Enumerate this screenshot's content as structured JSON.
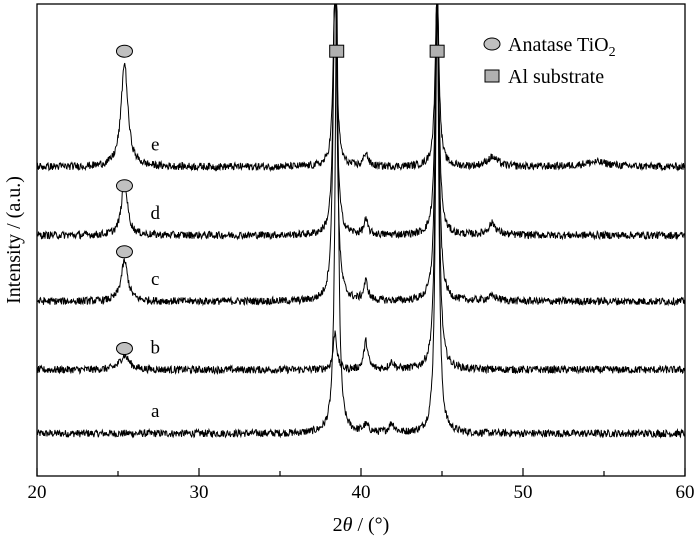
{
  "chart_data": {
    "type": "line",
    "title": "",
    "xlabel_prefix": "2",
    "xlabel_symbol": "θ",
    "xlabel_suffix": " / (°)",
    "ylabel": "Intensity / (a.u.)",
    "xlim": [
      20,
      60
    ],
    "x_ticks": [
      "20",
      "30",
      "40",
      "50",
      "60"
    ],
    "y_ticks": false,
    "grid": false,
    "legend": {
      "placement": "top-right",
      "entries": [
        {
          "marker": "ellipse",
          "name_main": "Anatase TiO",
          "name_sub": "2",
          "color": "#c0c0c0"
        },
        {
          "marker": "square",
          "name_main": "Al substrate",
          "name_sub": "",
          "color": "#b0b0b0"
        }
      ]
    },
    "series": [
      {
        "name": "a",
        "label_x": 27.3,
        "baseline": 0.09,
        "peaks": [
          [
            38.5,
            0.12,
            0.93
          ],
          [
            44.7,
            0.12,
            0.93
          ],
          [
            40.3,
            0.2,
            0.015
          ],
          [
            41.9,
            0.2,
            0.02
          ]
        ]
      },
      {
        "name": "b",
        "label_x": 27.3,
        "baseline": 0.225,
        "peaks": [
          [
            25.4,
            0.35,
            0.03
          ],
          [
            38.4,
            0.13,
            0.08
          ],
          [
            40.3,
            0.15,
            0.06
          ],
          [
            41.9,
            0.2,
            0.015
          ],
          [
            44.7,
            0.13,
            0.8
          ]
        ]
      },
      {
        "name": "c",
        "label_x": 27.3,
        "baseline": 0.37,
        "peaks": [
          [
            25.4,
            0.25,
            0.085
          ],
          [
            38.4,
            0.13,
            0.75
          ],
          [
            40.3,
            0.15,
            0.04
          ],
          [
            44.7,
            0.13,
            0.7
          ],
          [
            48.1,
            0.4,
            0.01
          ]
        ]
      },
      {
        "name": "d",
        "label_x": 27.3,
        "baseline": 0.51,
        "peaks": [
          [
            25.4,
            0.22,
            0.115
          ],
          [
            38.4,
            0.13,
            0.55
          ],
          [
            40.3,
            0.15,
            0.03
          ],
          [
            44.7,
            0.13,
            0.55
          ],
          [
            48.1,
            0.3,
            0.025
          ]
        ]
      },
      {
        "name": "e",
        "label_x": 27.3,
        "baseline": 0.655,
        "peaks": [
          [
            25.4,
            0.25,
            0.22
          ],
          [
            38.4,
            0.13,
            0.4
          ],
          [
            40.3,
            0.15,
            0.03
          ],
          [
            44.7,
            0.13,
            0.4
          ],
          [
            48.1,
            0.4,
            0.02
          ],
          [
            54.5,
            1.0,
            0.01
          ]
        ]
      }
    ],
    "peak_markers": {
      "anatase": [
        {
          "x": 25.4,
          "y": 0.9
        },
        {
          "x": 25.4,
          "y": 0.615
        },
        {
          "x": 25.4,
          "y": 0.475
        },
        {
          "x": 25.4,
          "y": 0.27
        }
      ],
      "al": [
        {
          "x": 38.5,
          "y": 0.9
        },
        {
          "x": 44.7,
          "y": 0.9
        }
      ]
    }
  },
  "colors": {
    "line": "#000000",
    "axis": "#000000",
    "anatase_marker": "#c0c0c0",
    "al_marker": "#b0b0b0"
  }
}
